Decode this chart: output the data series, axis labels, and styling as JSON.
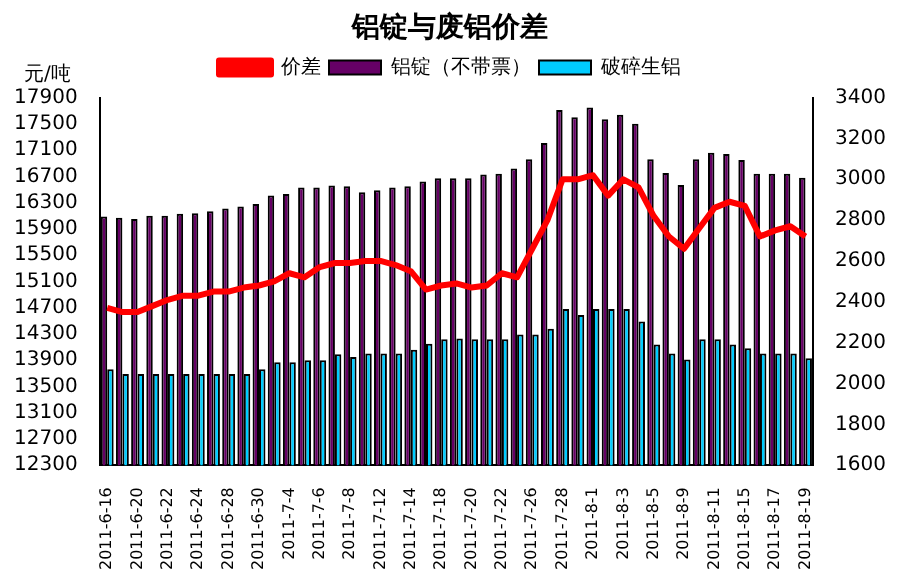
{
  "chart_data": {
    "type": "bar",
    "title": "铝锭与废铝价差",
    "ylabel": "元/吨",
    "categories": [
      "2011-6-16",
      null,
      "2011-6-20",
      null,
      "2011-6-22",
      null,
      "2011-6-24",
      null,
      "2011-6-28",
      null,
      "2011-6-30",
      null,
      "2011-7-4",
      null,
      "2011-7-6",
      null,
      "2011-7-8",
      null,
      "2011-7-12",
      null,
      "2011-7-14",
      null,
      "2011-7-18",
      null,
      "2011-7-20",
      null,
      "2011-7-22",
      null,
      "2011-7-26",
      null,
      "2011-7-28",
      null,
      "2011-8-1",
      null,
      "2011-8-3",
      null,
      "2011-8-5",
      null,
      "2011-8-9",
      null,
      "2011-8-11",
      null,
      "2011-8-15",
      null,
      "2011-8-17",
      null,
      "2011-8-19"
    ],
    "series": [
      {
        "name": "铝锭（不带票）",
        "color": "#660066",
        "values": [
          16090,
          16070,
          16050,
          16100,
          16100,
          16130,
          16140,
          16170,
          16210,
          16240,
          16280,
          16410,
          16430,
          16530,
          16530,
          16560,
          16550,
          16460,
          16490,
          16530,
          16550,
          16620,
          16670,
          16670,
          16670,
          16730,
          16740,
          16820,
          16960,
          17210,
          17710,
          17600,
          17750,
          17570,
          17640,
          17500,
          16960,
          16750,
          16570,
          16960,
          17060,
          17040,
          16950,
          16740,
          16740,
          16740,
          16680
        ]
      },
      {
        "name": "破碎生铝",
        "color": "#00ccff",
        "values": [
          13760,
          13690,
          13690,
          13690,
          13690,
          13690,
          13690,
          13690,
          13690,
          13690,
          13760,
          13870,
          13870,
          13900,
          13900,
          13990,
          13950,
          14000,
          14000,
          14000,
          14060,
          14150,
          14220,
          14230,
          14220,
          14220,
          14220,
          14290,
          14290,
          14380,
          14680,
          14590,
          14680,
          14680,
          14680,
          14490,
          14140,
          14000,
          13910,
          14220,
          14220,
          14140,
          14080,
          14000,
          14000,
          14000,
          13930
        ]
      },
      {
        "name": "价差",
        "type": "line",
        "axis": "y2",
        "color": "#ff0000",
        "values": [
          2370,
          2350,
          2350,
          2380,
          2410,
          2430,
          2430,
          2450,
          2450,
          2470,
          2480,
          2500,
          2540,
          2520,
          2570,
          2590,
          2590,
          2600,
          2600,
          2580,
          2550,
          2460,
          2480,
          2490,
          2470,
          2480,
          2540,
          2520,
          2660,
          2800,
          3000,
          3000,
          3020,
          2920,
          3000,
          2960,
          2820,
          2720,
          2660,
          2760,
          2860,
          2890,
          2870,
          2720,
          2750,
          2770,
          2720
        ]
      }
    ],
    "ylim": [
      12300,
      17900
    ],
    "yticks": [
      12300,
      12700,
      13100,
      13500,
      13900,
      14300,
      14700,
      15100,
      15500,
      15900,
      16300,
      16700,
      17100,
      17500,
      17900
    ],
    "y2lim": [
      1600,
      3400
    ],
    "y2ticks": [
      1600,
      1800,
      2000,
      2200,
      2400,
      2600,
      2800,
      3000,
      3200,
      3400
    ],
    "grid": false,
    "legend": "top",
    "marker": "none",
    "line_style": "solid"
  }
}
